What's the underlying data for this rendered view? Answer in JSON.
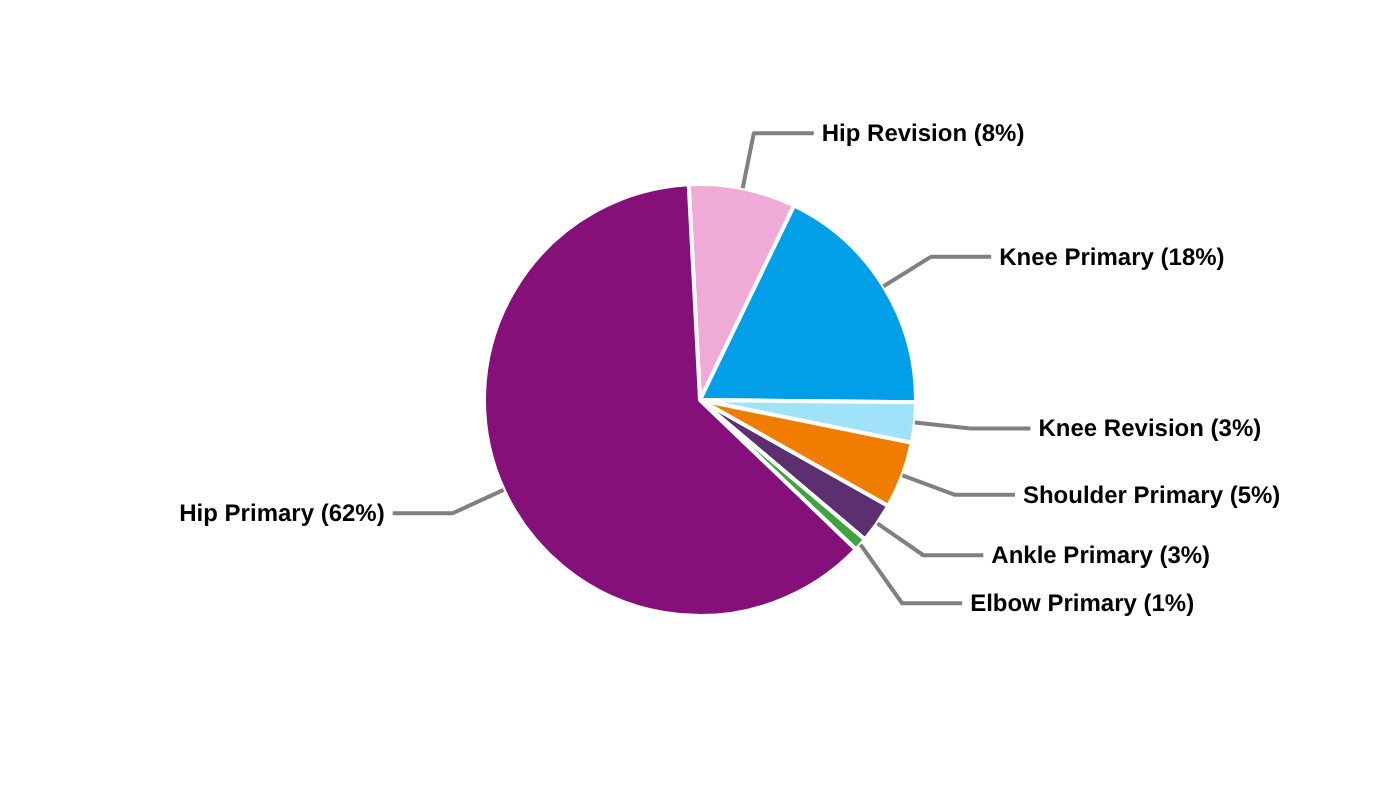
{
  "chart_data": {
    "type": "pie",
    "categories": [
      "Hip Revision",
      "Knee Primary",
      "Knee Revision",
      "Shoulder Primary",
      "Ankle Primary",
      "Elbow Primary",
      "Hip Primary"
    ],
    "values": [
      8,
      18,
      3,
      5,
      3,
      1,
      62
    ],
    "value_labels": [
      "(8%)",
      "(18%)",
      "(3%)",
      "(5%)",
      "(3%)",
      "(1%)",
      "(62%)"
    ],
    "colors": [
      "#f0aad8",
      "#009fe8",
      "#a0e2f8",
      "#f07d00",
      "#5b2f70",
      "#3fa33f",
      "#86107a"
    ],
    "legend": false
  }
}
